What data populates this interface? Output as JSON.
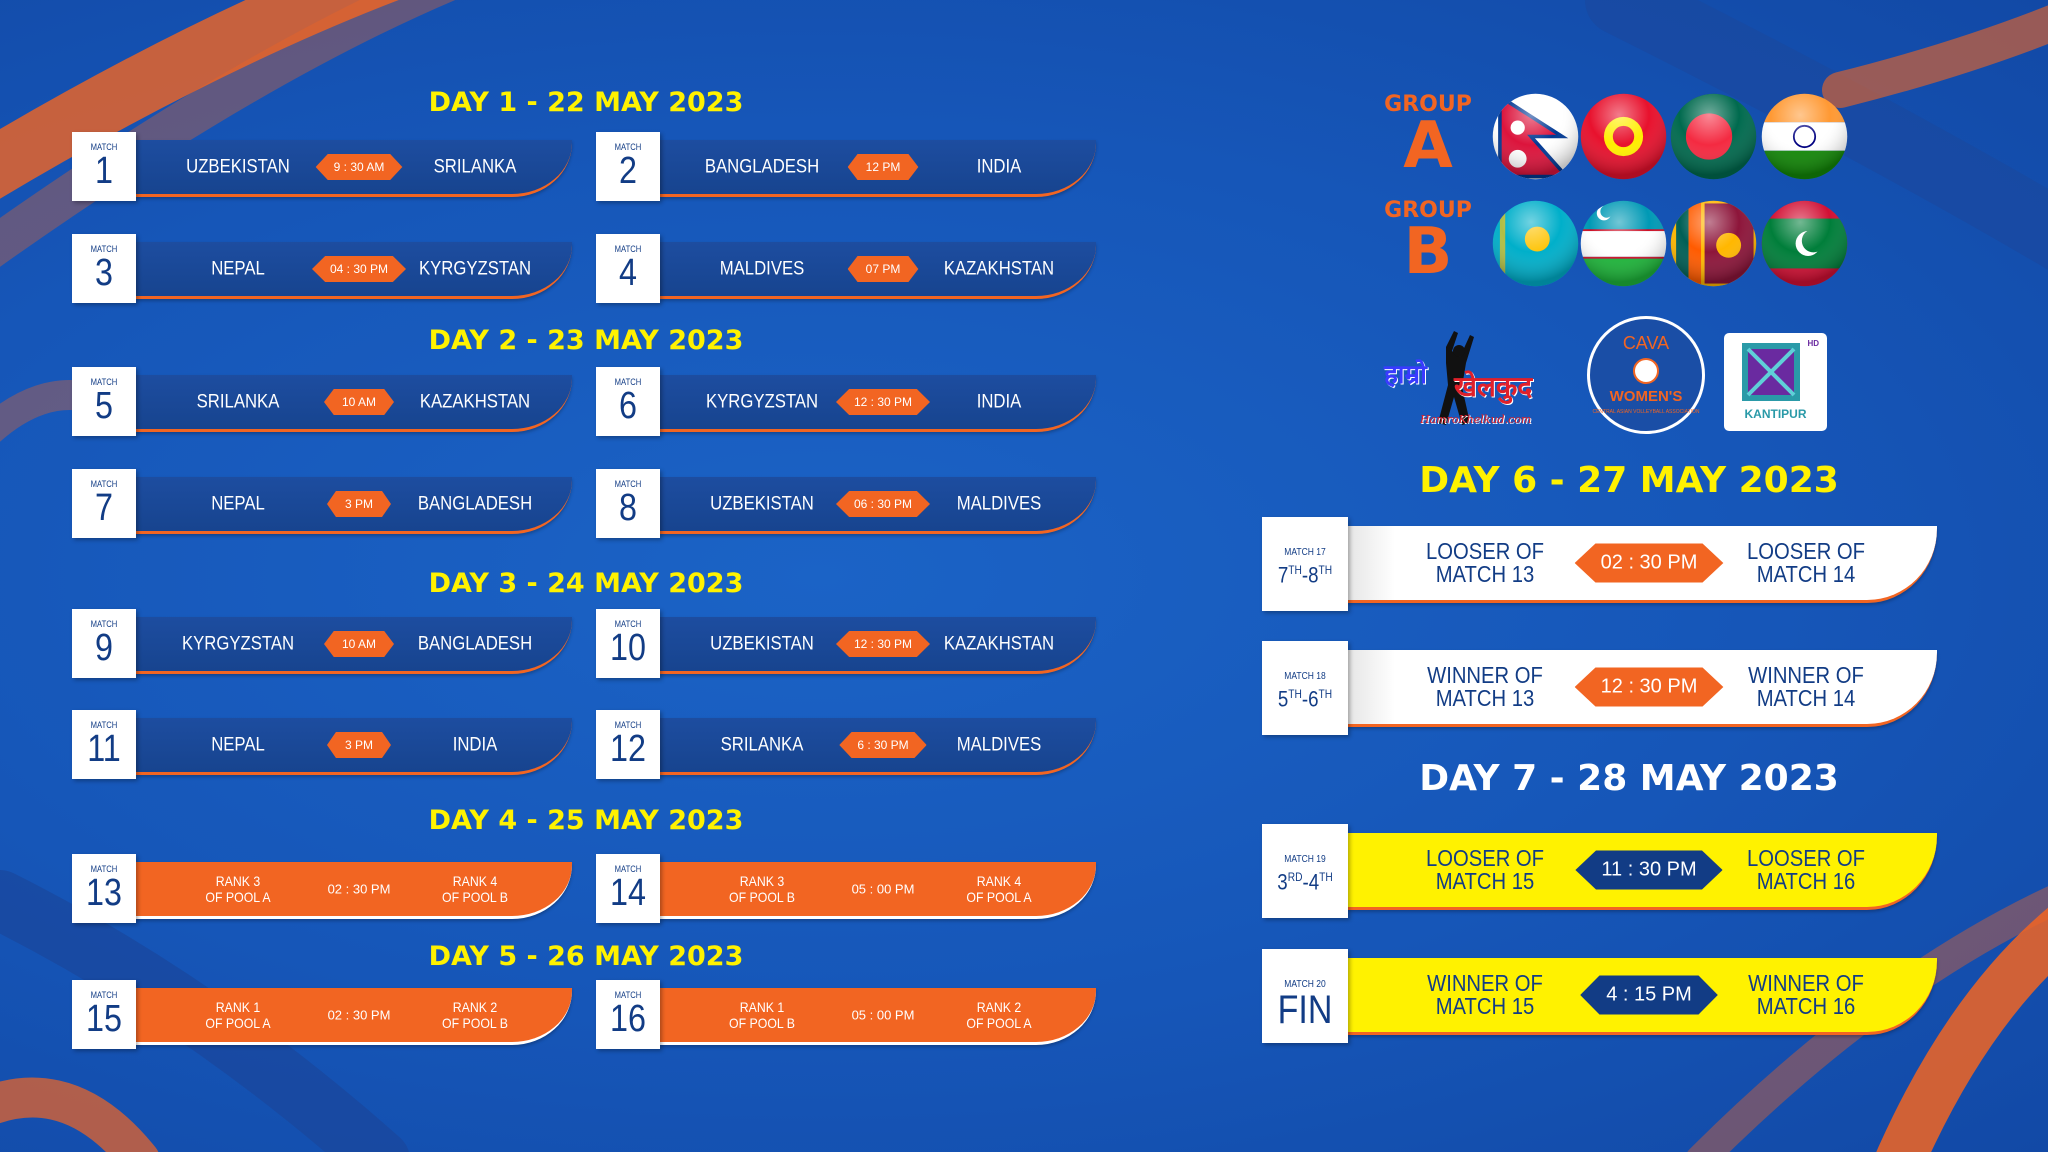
{
  "colors": {
    "background": "#1656b8",
    "accent_orange": "#f26522",
    "title_yellow": "#fff200",
    "navy": "#123c85",
    "white": "#ffffff"
  },
  "days": [
    {
      "title": "DAY 1 - 22 MAY 2023",
      "style": "blue",
      "matches": [
        {
          "label": "MATCH",
          "number": "1",
          "team1": "UZBEKISTAN",
          "time": "9 : 30 AM",
          "team2": "SRILANKA"
        },
        {
          "label": "MATCH",
          "number": "2",
          "team1": "BANGLADESH",
          "time": "12 PM",
          "team2": "INDIA"
        },
        {
          "label": "MATCH",
          "number": "3",
          "team1": "NEPAL",
          "time": "04 : 30 PM",
          "team2": "KYRGYZSTAN"
        },
        {
          "label": "MATCH",
          "number": "4",
          "team1": "MALDIVES",
          "time": "07 PM",
          "team2": "KAZAKHSTAN"
        }
      ]
    },
    {
      "title": "DAY 2 - 23 MAY 2023",
      "style": "blue",
      "matches": [
        {
          "label": "MATCH",
          "number": "5",
          "team1": "SRILANKA",
          "time": "10 AM",
          "team2": "KAZAKHSTAN"
        },
        {
          "label": "MATCH",
          "number": "6",
          "team1": "KYRGYZSTAN",
          "time": "12 : 30 PM",
          "team2": "INDIA"
        },
        {
          "label": "MATCH",
          "number": "7",
          "team1": "NEPAL",
          "time": "3 PM",
          "team2": "BANGLADESH"
        },
        {
          "label": "MATCH",
          "number": "8",
          "team1": "UZBEKISTAN",
          "time": "06 : 30 PM",
          "team2": "MALDIVES"
        }
      ]
    },
    {
      "title": "DAY 3 - 24 MAY 2023",
      "style": "blue",
      "matches": [
        {
          "label": "MATCH",
          "number": "9",
          "team1": "KYRGYZSTAN",
          "time": "10 AM",
          "team2": "BANGLADESH"
        },
        {
          "label": "MATCH",
          "number": "10",
          "team1": "UZBEKISTAN",
          "time": "12 : 30 PM",
          "team2": "KAZAKHSTAN"
        },
        {
          "label": "MATCH",
          "number": "11",
          "team1": "NEPAL",
          "time": "3 PM",
          "team2": "INDIA"
        },
        {
          "label": "MATCH",
          "number": "12",
          "team1": "SRILANKA",
          "time": "6 : 30 PM",
          "team2": "MALDIVES"
        }
      ]
    },
    {
      "title": "DAY 4 - 25 MAY 2023",
      "style": "orange",
      "matches": [
        {
          "label": "MATCH",
          "number": "13",
          "team1": "RANK 3\nOF POOL A",
          "time": "02 : 30 PM",
          "team2": "RANK 4\nOF POOL B"
        },
        {
          "label": "MATCH",
          "number": "14",
          "team1": "RANK 3\nOF POOL B",
          "time": "05 : 00 PM",
          "team2": "RANK 4\nOF POOL A"
        }
      ]
    },
    {
      "title": "DAY 5 - 26 MAY 2023",
      "style": "orange",
      "matches": [
        {
          "label": "MATCH",
          "number": "15",
          "team1": "RANK 1\nOF POOL A",
          "time": "02 : 30 PM",
          "team2": "RANK 2\nOF POOL B"
        },
        {
          "label": "MATCH",
          "number": "16",
          "team1": "RANK 1\nOF POOL B",
          "time": "05 : 00 PM",
          "team2": "RANK 2\nOF POOL A"
        }
      ]
    }
  ],
  "finals": [
    {
      "title": "DAY 6 - 27 MAY 2023",
      "style": "white",
      "matches": [
        {
          "label": "MATCH 17",
          "place_a": "7",
          "place_a_sup": "TH",
          "place_b": "-8",
          "place_b_sup": "TH",
          "team1": "LOOSER OF\nMATCH 13",
          "time": "02 : 30 PM",
          "team2": "LOOSER OF\nMATCH 14"
        },
        {
          "label": "MATCH 18",
          "place_a": "5",
          "place_a_sup": "TH",
          "place_b": "-6",
          "place_b_sup": "TH",
          "team1": "WINNER OF\nMATCH 13",
          "time": "12 : 30 PM",
          "team2": "WINNER OF\nMATCH 14"
        }
      ]
    },
    {
      "title": "DAY 7 - 28 MAY 2023",
      "style": "yellow",
      "matches": [
        {
          "label": "MATCH 19",
          "place_a": "3",
          "place_a_sup": "RD",
          "place_b": "-4",
          "place_b_sup": "TH",
          "team1": "LOOSER OF\nMATCH 15",
          "time": "11 : 30 PM",
          "team2": "LOOSER OF\nMATCH 16"
        },
        {
          "label": "MATCH 20",
          "final": "FIN",
          "team1": "WINNER OF\nMATCH 15",
          "time": "4 : 15 PM",
          "team2": "WINNER OF\nMATCH 16"
        }
      ]
    }
  ],
  "groups": [
    {
      "label": "GROUP",
      "letter": "A",
      "flags": [
        "nepal",
        "kyrgyzstan",
        "bangladesh",
        "india"
      ]
    },
    {
      "label": "GROUP",
      "letter": "B",
      "flags": [
        "kazakhstan",
        "uzbekistan",
        "srilanka",
        "maldives"
      ]
    }
  ],
  "logos": {
    "hamro_khelkud": {
      "line1": "हाम्रो",
      "line2": "खेलकुद",
      "site": "HamroKhelkud.com"
    },
    "cava": {
      "top": "CAVA",
      "middle": "WOMEN'S",
      "ring": "CENTRAL ASIAN VOLLEYBALL ASSOCIATION"
    },
    "kantipur": {
      "name": "KANTIPUR",
      "badge": "HD"
    }
  }
}
